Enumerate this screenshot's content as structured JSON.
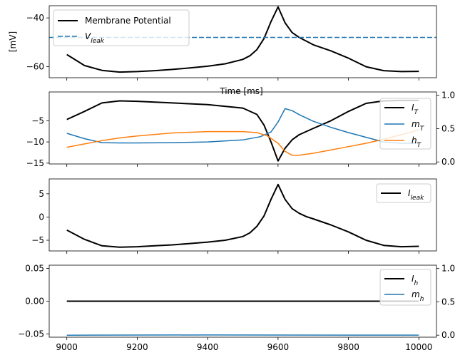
{
  "chart_data": [
    {
      "type": "line",
      "ylabel": "[mV]",
      "xlabel": "Time [ms]",
      "xlim": [
        8950,
        10050
      ],
      "ylim": [
        -64.5,
        -35.0
      ],
      "yticks": [
        -40,
        -60
      ],
      "ytick_labels": [
        "−40",
        "−60"
      ],
      "legend_position": "upper left",
      "series": [
        {
          "name": "Membrane Potential",
          "color": "#000000",
          "style": "solid",
          "x": [
            9000,
            9050,
            9100,
            9150,
            9200,
            9250,
            9300,
            9350,
            9400,
            9450,
            9500,
            9520,
            9540,
            9560,
            9580,
            9600,
            9620,
            9640,
            9660,
            9680,
            9700,
            9750,
            9800,
            9850,
            9900,
            9950,
            10000
          ],
          "y": [
            -55.0,
            -59.5,
            -61.5,
            -62.2,
            -62.0,
            -61.6,
            -61.1,
            -60.5,
            -59.8,
            -58.8,
            -57.0,
            -55.5,
            -53.0,
            -48.5,
            -41.5,
            -35.5,
            -42.0,
            -46.0,
            -48.0,
            -49.5,
            -51.0,
            -53.5,
            -56.5,
            -60.0,
            -61.6,
            -62.0,
            -61.9
          ]
        },
        {
          "name": "V_leak",
          "color": "#1f77b4",
          "style": "dashed",
          "x": [
            8950,
            10050
          ],
          "y": [
            -48.0,
            -48.0
          ]
        }
      ]
    },
    {
      "type": "line",
      "xlim": [
        8950,
        10050
      ],
      "ylim": [
        -15.2,
        1.8
      ],
      "yticks": [
        -5,
        -10,
        -15
      ],
      "ytick_labels": [
        "−5",
        "−10",
        "−15"
      ],
      "y2lim": [
        -0.03,
        1.05
      ],
      "y2ticks": [
        1.0,
        0.5,
        0.0
      ],
      "y2tick_labels": [
        "1.0",
        "0.5",
        "0.0"
      ],
      "legend_position": "upper right",
      "series": [
        {
          "name": "I_T",
          "axis": "left",
          "color": "#000000",
          "x": [
            9000,
            9050,
            9100,
            9150,
            9200,
            9300,
            9400,
            9500,
            9540,
            9560,
            9580,
            9600,
            9620,
            9640,
            9660,
            9700,
            9750,
            9800,
            9850,
            9900,
            9950,
            10000
          ],
          "y": [
            -4.7,
            -2.8,
            -0.8,
            -0.3,
            -0.4,
            -0.8,
            -1.2,
            -2.0,
            -3.5,
            -6.0,
            -10.0,
            -14.5,
            -11.5,
            -9.5,
            -8.3,
            -6.8,
            -5.0,
            -2.8,
            -0.9,
            -0.3,
            -0.2,
            -0.2
          ]
        },
        {
          "name": "m_T",
          "axis": "right",
          "color": "#1f77b4",
          "x": [
            9000,
            9050,
            9100,
            9150,
            9200,
            9300,
            9400,
            9500,
            9550,
            9580,
            9600,
            9620,
            9640,
            9660,
            9700,
            9750,
            9800,
            9850,
            9900,
            9950,
            10000
          ],
          "y": [
            0.43,
            0.35,
            0.29,
            0.285,
            0.285,
            0.29,
            0.3,
            0.33,
            0.38,
            0.45,
            0.6,
            0.8,
            0.77,
            0.71,
            0.61,
            0.52,
            0.44,
            0.37,
            0.3,
            0.28,
            0.28
          ]
        },
        {
          "name": "h_T",
          "axis": "right",
          "color": "#ff7f0e",
          "x": [
            9000,
            9050,
            9100,
            9150,
            9200,
            9300,
            9400,
            9500,
            9540,
            9570,
            9600,
            9620,
            9640,
            9660,
            9700,
            9750,
            9800,
            9850,
            9900,
            9950,
            10000
          ],
          "y": [
            0.22,
            0.27,
            0.32,
            0.36,
            0.39,
            0.435,
            0.455,
            0.455,
            0.44,
            0.39,
            0.28,
            0.16,
            0.1,
            0.1,
            0.13,
            0.18,
            0.23,
            0.28,
            0.34,
            0.41,
            0.48
          ]
        }
      ]
    },
    {
      "type": "line",
      "xlim": [
        8950,
        10050
      ],
      "ylim": [
        -7.3,
        8.2
      ],
      "yticks": [
        5,
        0,
        -5
      ],
      "ytick_labels": [
        "5",
        "0",
        "−5"
      ],
      "legend_position": "upper right",
      "series": [
        {
          "name": "I_leak",
          "color": "#000000",
          "x": [
            9000,
            9050,
            9100,
            9150,
            9200,
            9250,
            9300,
            9350,
            9400,
            9450,
            9500,
            9520,
            9540,
            9560,
            9580,
            9600,
            9620,
            9640,
            9660,
            9680,
            9700,
            9750,
            9800,
            9850,
            9900,
            9950,
            10000
          ],
          "y": [
            -2.8,
            -4.8,
            -6.2,
            -6.5,
            -6.4,
            -6.2,
            -6.0,
            -5.7,
            -5.4,
            -5.0,
            -4.2,
            -3.4,
            -2.0,
            0.2,
            3.8,
            7.0,
            3.8,
            1.8,
            0.8,
            0.1,
            -0.4,
            -1.7,
            -3.2,
            -5.0,
            -6.1,
            -6.4,
            -6.3
          ]
        }
      ]
    },
    {
      "type": "line",
      "xlim": [
        8950,
        10050
      ],
      "ylim": [
        -0.055,
        0.055
      ],
      "yticks": [
        0.05,
        0.0,
        -0.05
      ],
      "ytick_labels": [
        "0.05",
        "0.00",
        "−0.05"
      ],
      "y2lim": [
        -0.03,
        1.05
      ],
      "y2ticks": [
        1.0,
        0.5,
        0.0
      ],
      "y2tick_labels": [
        "1.0",
        "0.5",
        "0.0"
      ],
      "xticks": [
        9000,
        9200,
        9400,
        9600,
        9800,
        10000
      ],
      "xtick_labels": [
        "9000",
        "9200",
        "9400",
        "9600",
        "9800",
        "10000"
      ],
      "legend_position": "upper right",
      "series": [
        {
          "name": "I_h",
          "axis": "left",
          "color": "#000000",
          "x": [
            9000,
            10000
          ],
          "y": [
            0.0,
            0.0
          ]
        },
        {
          "name": "m_h",
          "axis": "right",
          "color": "#1f77b4",
          "x": [
            9000,
            9200,
            9400,
            9600,
            9800,
            10000
          ],
          "y": [
            0.0,
            0.002,
            0.003,
            0.002,
            0.001,
            0.001
          ]
        }
      ]
    }
  ]
}
